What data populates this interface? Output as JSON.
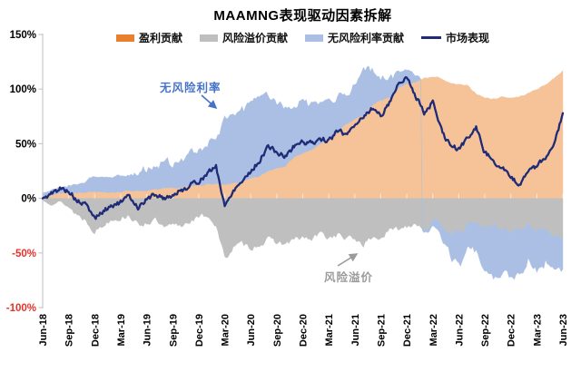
{
  "header": {
    "title": "MAAMNG表现驱动因素拆解"
  },
  "legend": {
    "items": [
      {
        "label": "盈利贡献",
        "color": "#e8802f",
        "type": "area"
      },
      {
        "label": "风险溢价贡献",
        "color": "#bfbfbf",
        "type": "area"
      },
      {
        "label": "无风险利率贡献",
        "color": "#aabfe3",
        "type": "area"
      },
      {
        "label": "市场表现",
        "color": "#1f2b77",
        "type": "line"
      }
    ]
  },
  "annotations": {
    "risk_free": {
      "label": "无风险利率",
      "color": "#4673c8"
    },
    "risk_premium": {
      "label": "风险溢价",
      "color": "#9b9b9b"
    }
  },
  "axes": {
    "y_ticks": [
      {
        "label": "150%",
        "value": 150,
        "color": "#000000"
      },
      {
        "label": "100%",
        "value": 100,
        "color": "#000000"
      },
      {
        "label": "50%",
        "value": 50,
        "color": "#000000"
      },
      {
        "label": "0%",
        "value": 0,
        "color": "#000000"
      },
      {
        "label": "-50%",
        "value": -50,
        "color": "#e53228"
      },
      {
        "label": "-100%",
        "value": -100,
        "color": "#e53228"
      }
    ],
    "x_ticks": [
      "Jun-18",
      "Sep-18",
      "Dec-18",
      "Mar-19",
      "Jun-19",
      "Sep-19",
      "Dec-19",
      "Mar-20",
      "Jun-20",
      "Sep-20",
      "Dec-20",
      "Mar-21",
      "Jun-21",
      "Sep-21",
      "Dec-21",
      "Mar-22",
      "Jun-22",
      "Sep-22",
      "Dec-22",
      "Mar-23",
      "Jun-23"
    ]
  },
  "chart_data": {
    "type": "stacked-area+line",
    "title": "MAAMNG表现驱动因素拆解",
    "ylabel": "",
    "xlabel": "",
    "ylim": [
      -100,
      150
    ],
    "grid": false,
    "legend_position": "top",
    "x_range": [
      "Jun-18",
      "Jun-23"
    ],
    "categories": [
      "2018-06",
      "2018-07",
      "2018-08",
      "2018-09",
      "2018-10",
      "2018-11",
      "2018-12",
      "2019-01",
      "2019-02",
      "2019-03",
      "2019-04",
      "2019-05",
      "2019-06",
      "2019-07",
      "2019-08",
      "2019-09",
      "2019-10",
      "2019-11",
      "2019-12",
      "2020-01",
      "2020-02",
      "2020-03",
      "2020-04",
      "2020-05",
      "2020-06",
      "2020-07",
      "2020-08",
      "2020-09",
      "2020-10",
      "2020-11",
      "2020-12",
      "2021-01",
      "2021-02",
      "2021-03",
      "2021-04",
      "2021-05",
      "2021-06",
      "2021-07",
      "2021-08",
      "2021-09",
      "2021-10",
      "2021-11",
      "2021-12",
      "2022-01",
      "2022-02",
      "2022-03",
      "2022-04",
      "2022-05",
      "2022-06",
      "2022-07",
      "2022-08",
      "2022-09",
      "2022-10",
      "2022-11",
      "2022-12",
      "2023-01",
      "2023-02",
      "2023-03",
      "2023-04",
      "2023-05",
      "2023-06"
    ],
    "series": [
      {
        "name": "盈利贡献",
        "type": "area",
        "fill": "#f5c397",
        "legend_color": "#e8802f",
        "values": [
          2,
          3,
          5,
          5,
          5,
          6,
          6,
          5,
          6,
          6,
          7,
          7,
          7,
          8,
          9,
          9,
          10,
          11,
          12,
          13,
          13,
          12,
          14,
          15,
          18,
          20,
          25,
          28,
          30,
          38,
          41,
          44,
          50,
          55,
          60,
          68,
          72,
          76,
          85,
          90,
          92,
          100,
          105,
          106,
          110,
          111,
          110,
          105,
          104,
          103,
          96,
          92,
          91,
          93,
          92,
          93,
          96,
          100,
          104,
          110,
          117
        ]
      },
      {
        "name": "风险溢价贡献",
        "type": "area",
        "fill": "#bfbfbf",
        "legend_color": "#bfbfbf",
        "values": [
          -2,
          -5,
          -3,
          -8,
          -15,
          -20,
          -30,
          -25,
          -18,
          -18,
          -15,
          -25,
          -22,
          -20,
          -28,
          -25,
          -25,
          -20,
          -18,
          -15,
          -25,
          -55,
          -45,
          -42,
          -45,
          -42,
          -38,
          -40,
          -42,
          -38,
          -36,
          -38,
          -32,
          -36,
          -33,
          -37,
          -37,
          -42,
          -36,
          -36,
          -30,
          -28,
          -25,
          -22,
          -28,
          -22,
          -25,
          -30,
          -33,
          -25,
          -22,
          -28,
          -24,
          -28,
          -30,
          -28,
          -25,
          -28,
          -30,
          -32,
          -36
        ]
      },
      {
        "name": "无风险利率贡献",
        "type": "area",
        "fill": "#aabfe3",
        "legend_color": "#aabfe3",
        "values": [
          3,
          4,
          5,
          7,
          8,
          10,
          14,
          14,
          13,
          15,
          14,
          18,
          20,
          20,
          25,
          24,
          26,
          30,
          34,
          36,
          42,
          60,
          61,
          65,
          67,
          72,
          70,
          60,
          55,
          49,
          47,
          44,
          35,
          33,
          35,
          27,
          33,
          42,
          33,
          22,
          18,
          15,
          13,
          6,
          -2,
          -5,
          -12,
          -20,
          -28,
          -25,
          -23,
          -40,
          -49,
          -40,
          -42,
          -40,
          -35,
          -33,
          -30,
          -28,
          -29
        ]
      },
      {
        "name": "市场表现",
        "type": "line",
        "color": "#1f2b77",
        "values": [
          0,
          4,
          9,
          7,
          -3,
          -6,
          -18,
          -12,
          -6,
          -4,
          2,
          -8,
          -1,
          4,
          0,
          3,
          7,
          12,
          16,
          22,
          30,
          -8,
          8,
          16,
          25,
          34,
          48,
          42,
          38,
          48,
          52,
          50,
          55,
          52,
          62,
          58,
          68,
          75,
          82,
          76,
          88,
          105,
          110,
          95,
          78,
          88,
          62,
          48,
          45,
          55,
          65,
          42,
          35,
          28,
          18,
          13,
          25,
          30,
          36,
          50,
          78
        ]
      }
    ]
  }
}
